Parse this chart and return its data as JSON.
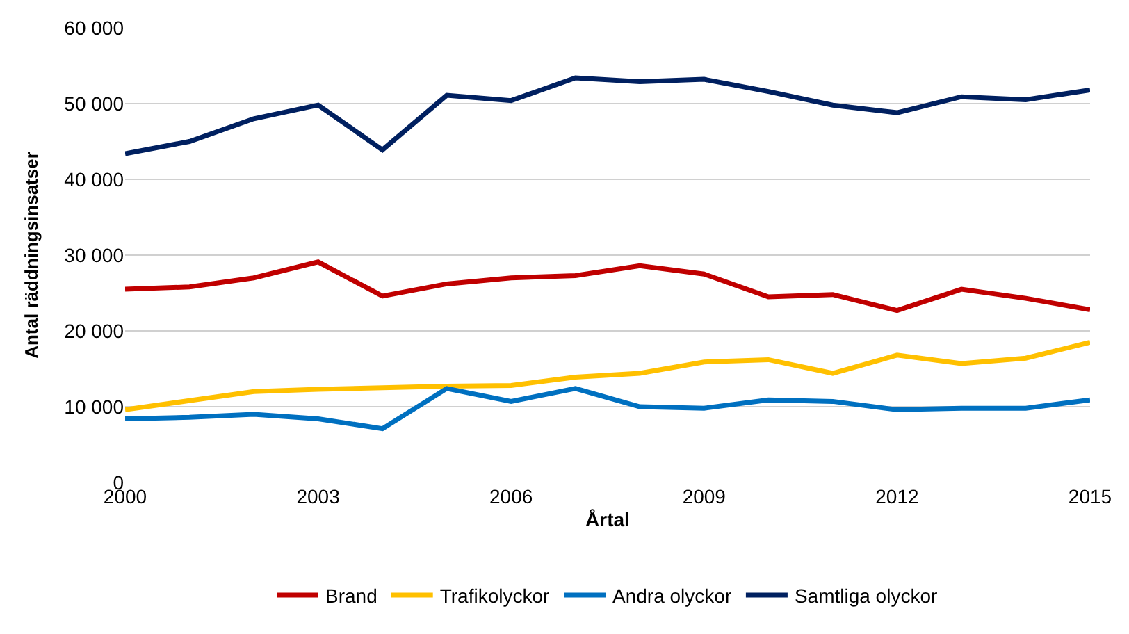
{
  "chart_data": {
    "type": "line",
    "xlabel": "Årtal",
    "ylabel": "Antal räddningsinsatser",
    "x": [
      2000,
      2001,
      2002,
      2003,
      2004,
      2005,
      2006,
      2007,
      2008,
      2009,
      2010,
      2011,
      2012,
      2013,
      2014,
      2015
    ],
    "series": [
      {
        "name": "Brand",
        "color": "#c00000",
        "values": [
          25500,
          25800,
          27000,
          29100,
          24600,
          26200,
          27000,
          27300,
          28600,
          27500,
          24500,
          24800,
          22700,
          25500,
          24300,
          22800
        ]
      },
      {
        "name": "Trafikolyckor",
        "color": "#ffc000",
        "values": [
          9600,
          10800,
          12000,
          12300,
          12500,
          12700,
          12800,
          13900,
          14400,
          15900,
          16200,
          14400,
          16800,
          15700,
          16400,
          18500
        ]
      },
      {
        "name": "Andra olyckor",
        "color": "#0070c0",
        "values": [
          8400,
          8600,
          9000,
          8400,
          7100,
          12400,
          10700,
          12400,
          10000,
          9800,
          10900,
          10700,
          9600,
          9800,
          9800,
          10900
        ]
      },
      {
        "name": "Samtliga olyckor",
        "color": "#002060",
        "values": [
          43400,
          45000,
          48000,
          49800,
          43900,
          51100,
          50400,
          53400,
          52900,
          53200,
          51600,
          49800,
          48800,
          50900,
          50500,
          51800
        ]
      }
    ],
    "xlim": [
      2000,
      2015
    ],
    "xticks": [
      2000,
      2003,
      2006,
      2009,
      2012,
      2015
    ],
    "ylim": [
      0,
      60000
    ],
    "yticks": [
      {
        "value": 0,
        "label": "0"
      },
      {
        "value": 10000,
        "label": "10 000"
      },
      {
        "value": 20000,
        "label": "20 000"
      },
      {
        "value": 30000,
        "label": "30 000"
      },
      {
        "value": 40000,
        "label": "40 000"
      },
      {
        "value": 50000,
        "label": "50 000"
      },
      {
        "value": 60000,
        "label": "60 000"
      }
    ],
    "grid": "y",
    "legend": "bottom",
    "marker": "none",
    "line_style": "solid"
  }
}
